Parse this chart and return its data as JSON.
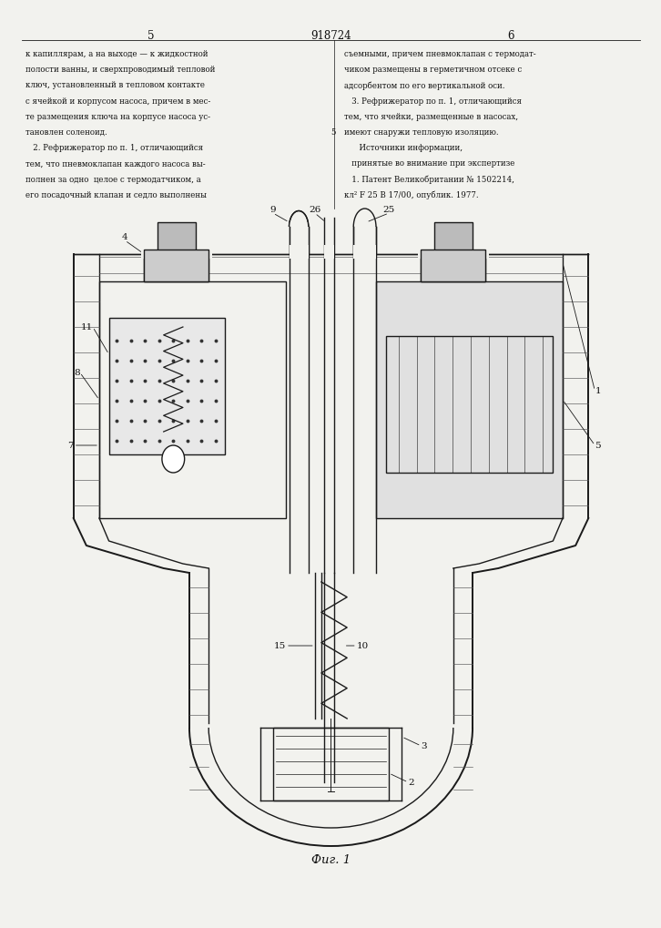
{
  "page_width": 7.07,
  "page_height": 10.0,
  "bg_color": "#f2f2ee",
  "line_color": "#1a1a1a",
  "text_color": "#111111",
  "header": {
    "page_left": "5",
    "patent_number": "918724",
    "page_right": "6"
  },
  "text_left": [
    "к капиллярам, а на выходе — к жидкостной",
    "полости ванны, и сверхпроводимый тепловой",
    "ключ, установленный в тепловом контакте",
    "с ячейкой и корпусом насоса, причем в мес-",
    "те размещения ключа на корпусе насоса ус-",
    "тановлен соленоид.",
    "   2. Рефрижератор по п. 1, отличающийся",
    "тем, что пневмоклапан каждого насоса вы-",
    "полнен за одно  целое с термодатчиком, а",
    "его посадочный клапан и седло выполнены"
  ],
  "text_right": [
    "съемными, причем пневмоклапан с термодат-",
    "чиком размещены в герметичном отсеке с",
    "адсорбентом по его вертикальной оси.",
    "   3. Рефрижератор по п. 1, отличающийся",
    "тем, что ячейки, размещенные в насосах,",
    "имеют снаружи тепловую изоляцию.",
    "      Источники информации,",
    "   принятые во внимание при экспертизе",
    "   1. Патент Великобритании № 1502214,",
    "кл² F 25 В 17/00, опублик. 1977."
  ],
  "fig_caption": "Фиг. 1"
}
